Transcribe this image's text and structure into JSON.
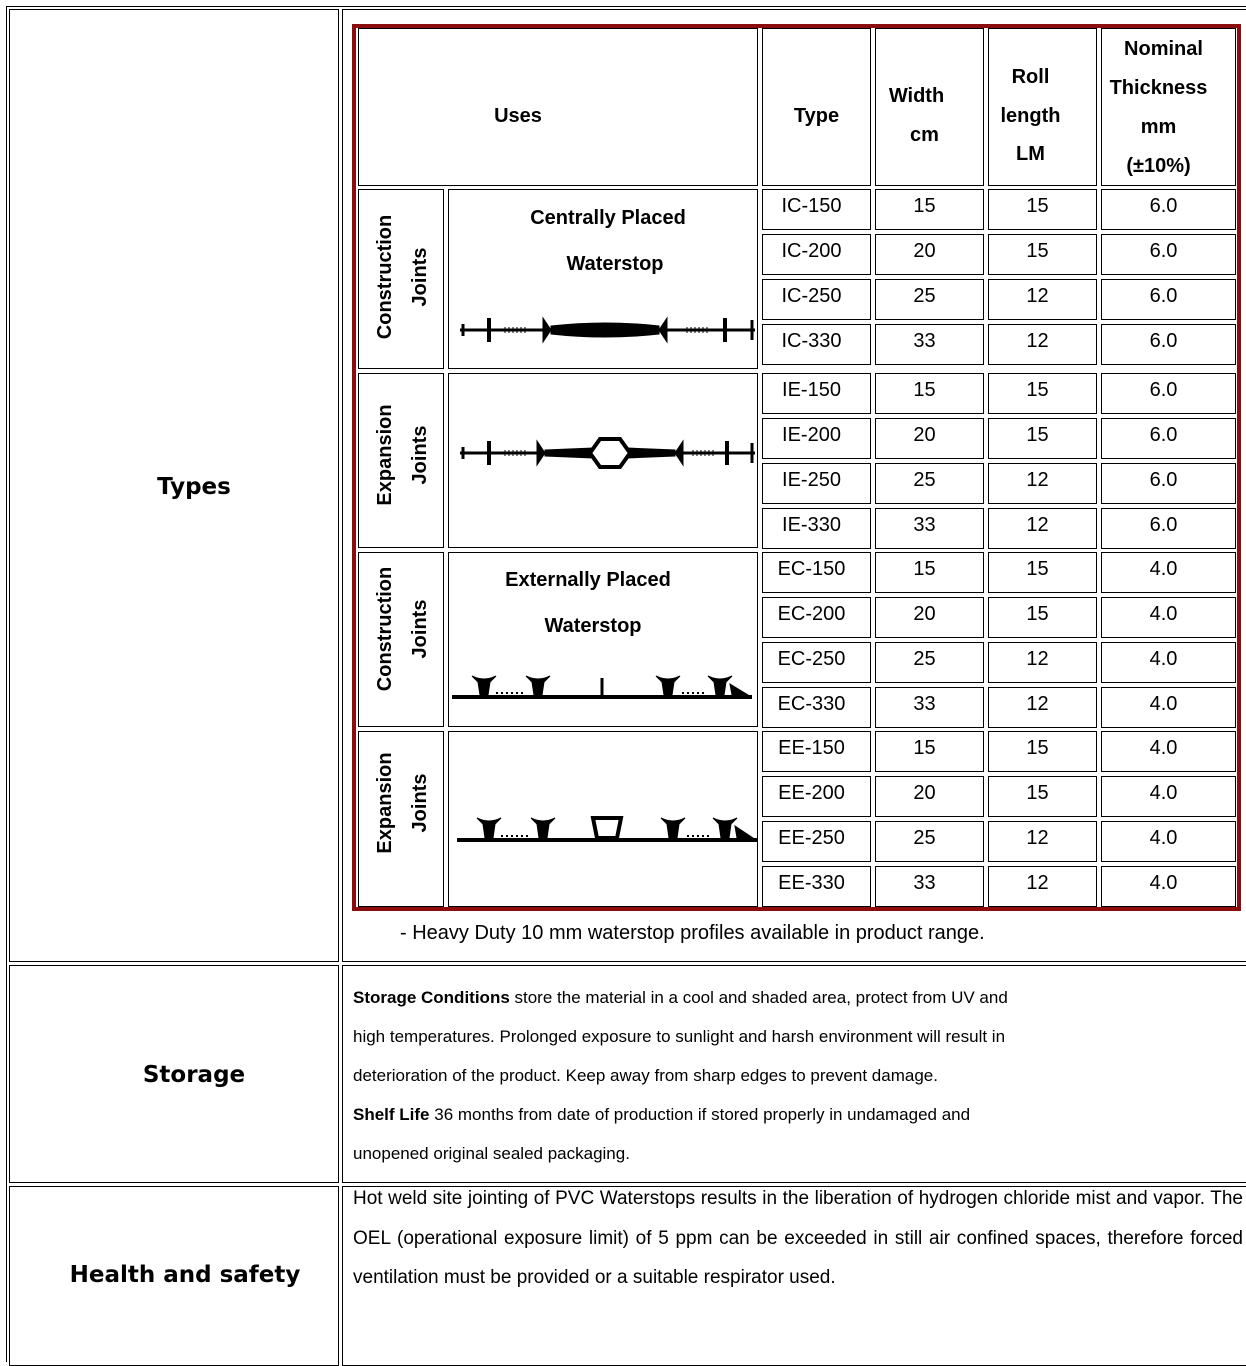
{
  "rows": {
    "types_label": "Types",
    "storage_label": "Storage",
    "health_label": "Health and safety"
  },
  "table": {
    "headers": {
      "uses": "Uses",
      "type": "Type",
      "width": [
        "Width",
        "cm"
      ],
      "roll": [
        "Roll",
        "length",
        "LM"
      ],
      "thickness": [
        "Nominal",
        "Thickness",
        "mm",
        "(±10%)"
      ]
    },
    "groups": [
      {
        "joint": [
          "Construction",
          "Joints"
        ],
        "profile": [
          "Centrally Placed",
          "Waterstop"
        ],
        "drawing": "central-construction-profile"
      },
      {
        "joint": [
          "Expansion",
          "Joints"
        ],
        "profile": [],
        "drawing": "central-expansion-profile"
      },
      {
        "joint": [
          "Construction",
          "Joints"
        ],
        "profile": [
          "Externally Placed",
          "Waterstop"
        ],
        "drawing": "external-construction-profile"
      },
      {
        "joint": [
          "Expansion",
          "Joints"
        ],
        "profile": [],
        "drawing": "external-expansion-profile"
      }
    ],
    "rows": [
      {
        "type": "IC-150",
        "width": "15",
        "roll": "15",
        "thickness": "6.0"
      },
      {
        "type": "IC-200",
        "width": "20",
        "roll": "15",
        "thickness": "6.0"
      },
      {
        "type": "IC-250",
        "width": "25",
        "roll": "12",
        "thickness": "6.0"
      },
      {
        "type": "IC-330",
        "width": "33",
        "roll": "12",
        "thickness": "6.0"
      },
      {
        "type": "IE-150",
        "width": "15",
        "roll": "15",
        "thickness": "6.0"
      },
      {
        "type": "IE-200",
        "width": "20",
        "roll": "15",
        "thickness": "6.0"
      },
      {
        "type": "IE-250",
        "width": "25",
        "roll": "12",
        "thickness": "6.0"
      },
      {
        "type": "IE-330",
        "width": "33",
        "roll": "12",
        "thickness": "6.0"
      },
      {
        "type": "EC-150",
        "width": "15",
        "roll": "15",
        "thickness": "4.0"
      },
      {
        "type": "EC-200",
        "width": "20",
        "roll": "15",
        "thickness": "4.0"
      },
      {
        "type": "EC-250",
        "width": "25",
        "roll": "12",
        "thickness": "4.0"
      },
      {
        "type": "EC-330",
        "width": "33",
        "roll": "12",
        "thickness": "4.0"
      },
      {
        "type": "EE-150",
        "width": "15",
        "roll": "15",
        "thickness": "4.0"
      },
      {
        "type": "EE-200",
        "width": "20",
        "roll": "15",
        "thickness": "4.0"
      },
      {
        "type": "EE-250",
        "width": "25",
        "roll": "12",
        "thickness": "4.0"
      },
      {
        "type": "EE-330",
        "width": "33",
        "roll": "12",
        "thickness": "4.0"
      }
    ],
    "note": "- Heavy Duty 10 mm waterstop profiles available in product range."
  },
  "storage": {
    "conditions_label": "Storage Conditions",
    "conditions_text_1": " store the material in a cool and shaded area, protect from UV and",
    "conditions_text_2": "high temperatures. Prolonged exposure to sunlight and harsh environment will result in",
    "conditions_text_3": "deterioration of the product. Keep away from sharp edges to prevent damage.",
    "shelf_label": "Shelf Life",
    "shelf_text_1": " 36 months from date of production if stored properly in undamaged and",
    "shelf_text_2": "unopened original sealed packaging."
  },
  "health": {
    "text": "Hot weld site jointing of PVC Waterstops results in the liberation of hydrogen chloride mist and vapor. The OEL (operational exposure limit) of 5 ppm can be exceeded in still air confined spaces, therefore forced ventilation must be provided or a suitable respirator used."
  },
  "colors": {
    "table_border": "#8b0d0d"
  }
}
